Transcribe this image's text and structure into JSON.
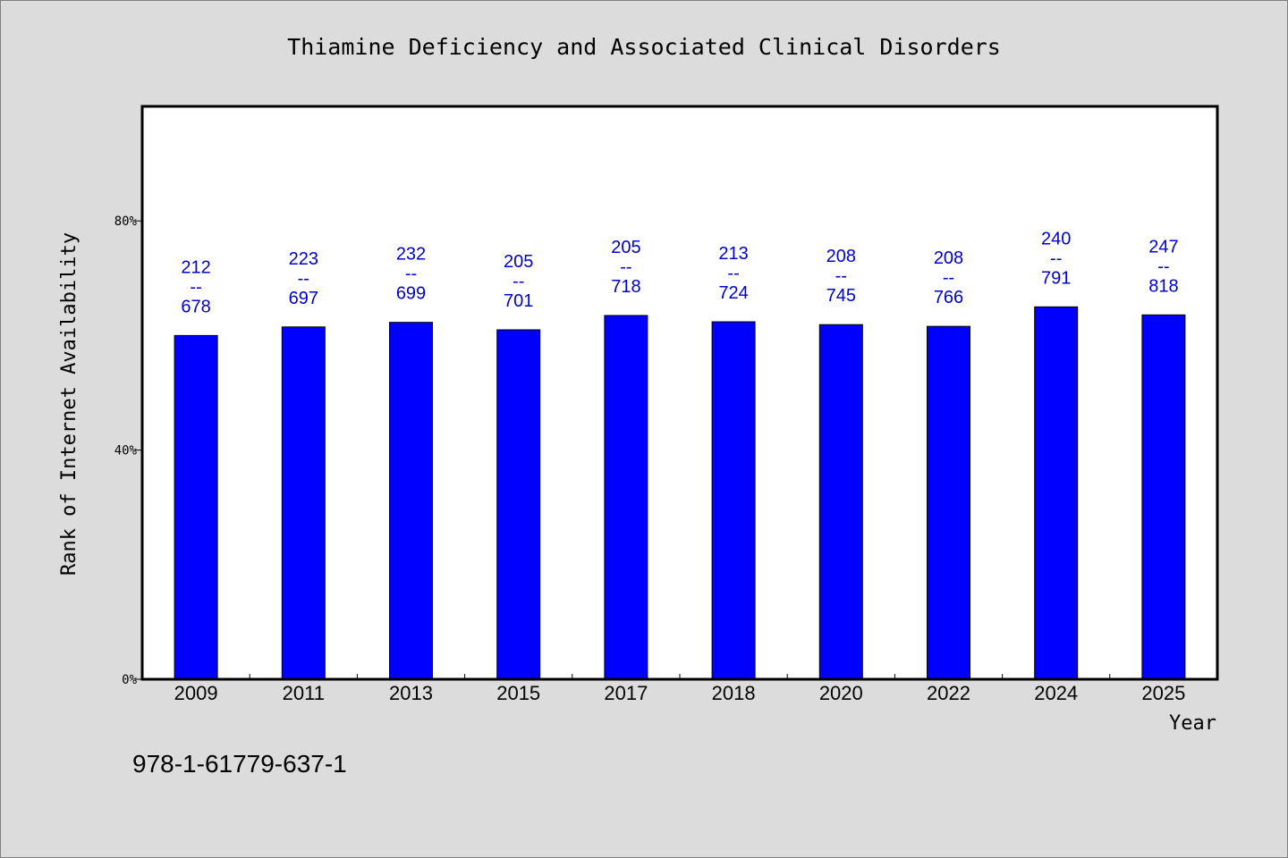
{
  "chart_data": {
    "type": "bar",
    "title": "Thiamine Deficiency and Associated Clinical Disorders",
    "xlabel": "Year",
    "ylabel": "Rank of Internet Availability",
    "categories": [
      "2009",
      "2011",
      "2013",
      "2015",
      "2017",
      "2018",
      "2020",
      "2022",
      "2024",
      "2025"
    ],
    "values": [
      60,
      61.5,
      62.3,
      61,
      63.5,
      62.4,
      61.9,
      61.6,
      65,
      63.6
    ],
    "labels": [
      [
        "212",
        "--",
        "678"
      ],
      [
        "223",
        "--",
        "697"
      ],
      [
        "232",
        "--",
        "699"
      ],
      [
        "205",
        "--",
        "701"
      ],
      [
        "205",
        "--",
        "718"
      ],
      [
        "213",
        "--",
        "724"
      ],
      [
        "208",
        "--",
        "745"
      ],
      [
        "208",
        "--",
        "766"
      ],
      [
        "240",
        "--",
        "791"
      ],
      [
        "247",
        "--",
        "818"
      ]
    ],
    "ylim": [
      0,
      100
    ],
    "yticks": [
      0,
      40,
      80
    ],
    "ytick_labels": [
      "0%",
      "40%",
      "80%"
    ],
    "bar_color": "#0000ff",
    "label_color": "#0000cc",
    "grid": false
  },
  "footer": {
    "text": "978-1-61779-637-1"
  }
}
